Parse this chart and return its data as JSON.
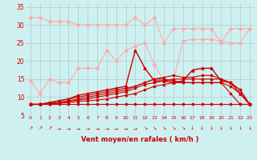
{
  "xlabel": "Vent moyen/en rafales ( km/h )",
  "bg_color": "#cff0f0",
  "grid_color": "#aacccc",
  "x": [
    0,
    1,
    2,
    3,
    4,
    5,
    6,
    7,
    8,
    9,
    10,
    11,
    12,
    13,
    14,
    15,
    16,
    17,
    18,
    19,
    20,
    21,
    22,
    23
  ],
  "series": [
    {
      "y": [
        32,
        32,
        31,
        31,
        31,
        30,
        30,
        30,
        30,
        30,
        30,
        32,
        30,
        32,
        25,
        29,
        29,
        29,
        29,
        29,
        25,
        29,
        29,
        29
      ],
      "color": "#ffaaaa",
      "marker": "D",
      "markersize": 2,
      "linewidth": 0.8,
      "zorder": 2
    },
    {
      "y": [
        14.5,
        11,
        15,
        14,
        14,
        18,
        18,
        18,
        23,
        20,
        23,
        24,
        25,
        19,
        14.5,
        14.5,
        25.5,
        26,
        26,
        26,
        25.5,
        25,
        25,
        29
      ],
      "color": "#ffaaaa",
      "marker": "D",
      "markersize": 2,
      "linewidth": 0.8,
      "zorder": 2
    },
    {
      "y": [
        8,
        8,
        8,
        8,
        8,
        8,
        8,
        8,
        8,
        8,
        8,
        8,
        8,
        8,
        8,
        8,
        8,
        8,
        8,
        8,
        8,
        8,
        8,
        8
      ],
      "color": "#cc0000",
      "marker": "s",
      "markersize": 1.8,
      "linewidth": 0.8,
      "zorder": 3
    },
    {
      "y": [
        8,
        8,
        8.2,
        8.3,
        8.5,
        8.8,
        9.0,
        9.2,
        9.5,
        10,
        10.5,
        11,
        12,
        13,
        13.5,
        14,
        14,
        14,
        14,
        14,
        14,
        13,
        11,
        8
      ],
      "color": "#cc0000",
      "marker": "s",
      "markersize": 1.8,
      "linewidth": 0.8,
      "zorder": 3
    },
    {
      "y": [
        8,
        8,
        8.2,
        8.5,
        8.8,
        9.2,
        9.5,
        10,
        10.5,
        11,
        11.5,
        12.5,
        13.5,
        14,
        14.5,
        15,
        15,
        15,
        15,
        15,
        15,
        14,
        12,
        8
      ],
      "color": "#cc0000",
      "marker": "s",
      "markersize": 1.8,
      "linewidth": 0.8,
      "zorder": 3
    },
    {
      "y": [
        8,
        8,
        8.5,
        9,
        9.5,
        10,
        10.5,
        11,
        11.5,
        12,
        12.5,
        13,
        14,
        15,
        15.5,
        16,
        15.5,
        15.5,
        16,
        16,
        15,
        14,
        12,
        8
      ],
      "color": "#cc0000",
      "marker": "s",
      "markersize": 1.8,
      "linewidth": 0.8,
      "zorder": 3
    },
    {
      "y": [
        8,
        8,
        8.5,
        9,
        9.5,
        10.5,
        11,
        11.5,
        12,
        12.5,
        13,
        23,
        18,
        14.5,
        14.5,
        14,
        14.5,
        17.5,
        18,
        18,
        14.5,
        14,
        11,
        8
      ],
      "color": "#cc0000",
      "marker": "^",
      "markersize": 2.2,
      "linewidth": 1.0,
      "zorder": 4
    },
    {
      "y": [
        8,
        8,
        8.2,
        8.5,
        9,
        9.5,
        10,
        10.5,
        11,
        11.5,
        12,
        13,
        14,
        15,
        15,
        14.5,
        14,
        14,
        14,
        14,
        14,
        11,
        8,
        8
      ],
      "color": "#cc0000",
      "marker": "s",
      "markersize": 1.8,
      "linewidth": 0.8,
      "zorder": 3
    }
  ],
  "arrows": [
    "↗",
    "↗",
    "↗",
    "→",
    "→",
    "→",
    "→",
    "→",
    "→",
    "→",
    "→",
    "→",
    "↘",
    "↘",
    "↘",
    "↘",
    "↘",
    "↓",
    "↓",
    "↓",
    "↓",
    "↓",
    "↓",
    "↓"
  ],
  "ylim": [
    5,
    36
  ],
  "yticks": [
    5,
    10,
    15,
    20,
    25,
    30,
    35
  ],
  "xlim": [
    -0.5,
    23.5
  ]
}
